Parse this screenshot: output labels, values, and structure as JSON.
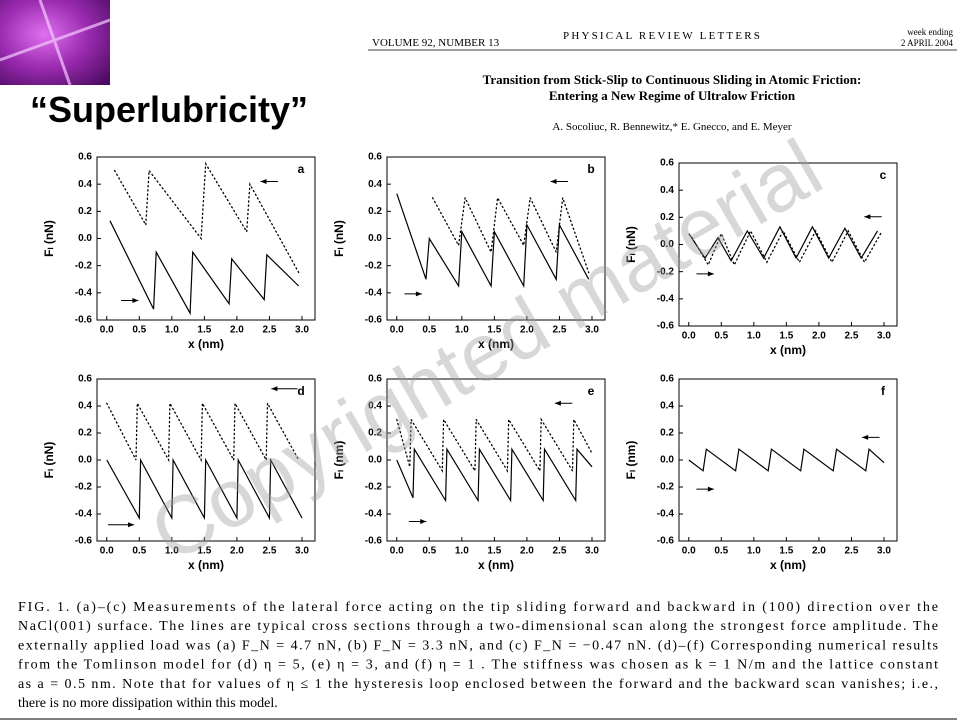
{
  "header": {
    "volume": "VOLUME 92, NUMBER 13",
    "journal": "PHYSICAL REVIEW LETTERS",
    "week": "week ending",
    "date": "2 APRIL 2004"
  },
  "slide_title": "“Superlubricity”",
  "paper": {
    "title": [
      "Transition from Stick-Slip to Continuous Sliding in Atomic Friction:",
      "Entering a New Regime of Ultralow Friction"
    ],
    "authors": "A. Socoliuc, R. Bennewitz,* E. Gnecco, and E. Meyer"
  },
  "chart_data": [
    {
      "type": "line",
      "label": "a",
      "xlabel": "x (nm)",
      "ylabel": "Fₗ (nN)",
      "xlim": [
        -0.15,
        3.2
      ],
      "ylim": [
        -0.6,
        0.6
      ],
      "xticks": [
        {
          "value": 0,
          "label": "0.0"
        },
        0.5,
        {
          "value": 1,
          "label": "1.0"
        },
        1.5,
        {
          "value": 2,
          "label": "2.0"
        },
        2.5,
        {
          "value": 3,
          "label": "3.0"
        }
      ],
      "yticks": [
        -0.6,
        -0.4,
        -0.2,
        {
          "value": 0,
          "label": "0.0"
        },
        0.2,
        0.4,
        0.6
      ],
      "series": [
        {
          "style": "solid",
          "color": "#000000",
          "x": [
            0.05,
            0.72,
            0.76,
            1.28,
            1.32,
            1.88,
            1.92,
            2.42,
            2.46,
            2.95
          ],
          "values": [
            0.13,
            -0.52,
            -0.1,
            -0.55,
            -0.1,
            -0.48,
            -0.15,
            -0.45,
            -0.12,
            -0.35
          ]
        },
        {
          "style": "dotted",
          "color": "#000000",
          "x": [
            0.12,
            0.6,
            0.65,
            1.45,
            1.52,
            2.15,
            2.2,
            2.95
          ],
          "values": [
            0.5,
            0.1,
            0.5,
            0.0,
            0.55,
            0.05,
            0.4,
            -0.25
          ]
        }
      ]
    },
    {
      "type": "line",
      "label": "b",
      "xlabel": "x (nm)",
      "ylabel": "Fₗ (nN)",
      "xlim": [
        -0.15,
        3.2
      ],
      "ylim": [
        -0.6,
        0.6
      ],
      "xticks": [
        {
          "value": 0,
          "label": "0.0"
        },
        0.5,
        {
          "value": 1,
          "label": "1.0"
        },
        1.5,
        {
          "value": 2,
          "label": "2.0"
        },
        2.5,
        {
          "value": 3,
          "label": "3.0"
        }
      ],
      "yticks": [
        -0.6,
        -0.4,
        -0.2,
        {
          "value": 0,
          "label": "0.0"
        },
        0.2,
        0.4,
        0.6
      ],
      "series": [
        {
          "style": "solid",
          "color": "#000000",
          "x": [
            0.0,
            0.45,
            0.5,
            0.95,
            1.0,
            1.45,
            1.5,
            1.95,
            2.0,
            2.45,
            2.5,
            2.95
          ],
          "values": [
            0.33,
            -0.3,
            0.0,
            -0.35,
            0.05,
            -0.35,
            0.05,
            -0.35,
            0.1,
            -0.3,
            0.1,
            -0.3
          ]
        },
        {
          "style": "dotted",
          "color": "#000000",
          "x": [
            0.55,
            0.95,
            1.05,
            1.45,
            1.55,
            1.95,
            2.05,
            2.45,
            2.55,
            2.95
          ],
          "values": [
            0.3,
            -0.05,
            0.3,
            -0.1,
            0.3,
            -0.05,
            0.3,
            -0.1,
            0.3,
            -0.25
          ]
        }
      ]
    },
    {
      "type": "line",
      "label": "c",
      "xlabel": "x (nm)",
      "ylabel": "Fₗ (nN)",
      "xlim": [
        -0.15,
        3.2
      ],
      "ylim": [
        -0.6,
        0.6
      ],
      "xticks": [
        {
          "value": 0,
          "label": "0.0"
        },
        0.5,
        {
          "value": 1,
          "label": "1.0"
        },
        1.5,
        {
          "value": 2,
          "label": "2.0"
        },
        2.5,
        {
          "value": 3,
          "label": "3.0"
        }
      ],
      "yticks": [
        -0.6,
        -0.4,
        -0.2,
        {
          "value": 0,
          "label": "0.0"
        },
        0.2,
        0.4,
        0.6
      ],
      "series": [
        {
          "style": "solid",
          "color": "#000000",
          "x": [
            0.0,
            0.25,
            0.45,
            0.65,
            0.9,
            1.15,
            1.4,
            1.65,
            1.9,
            2.15,
            2.4,
            2.65,
            2.9
          ],
          "values": [
            0.08,
            -0.1,
            0.05,
            -0.12,
            0.1,
            -0.1,
            0.13,
            -0.1,
            0.13,
            -0.1,
            0.12,
            -0.1,
            0.1
          ]
        },
        {
          "style": "dotted",
          "color": "#000000",
          "x": [
            0.05,
            0.3,
            0.5,
            0.7,
            0.95,
            1.2,
            1.45,
            1.7,
            1.95,
            2.2,
            2.45,
            2.7,
            2.95
          ],
          "values": [
            0.05,
            -0.15,
            0.08,
            -0.15,
            0.1,
            -0.13,
            0.1,
            -0.13,
            0.1,
            -0.13,
            0.1,
            -0.13,
            0.08
          ]
        }
      ]
    },
    {
      "type": "line",
      "label": "d",
      "xlabel": "x (nm)",
      "ylabel": "Fₗ (nN)",
      "xlim": [
        -0.15,
        3.2
      ],
      "ylim": [
        -0.6,
        0.6
      ],
      "xticks": [
        {
          "value": 0,
          "label": "0.0"
        },
        0.5,
        {
          "value": 1,
          "label": "1.0"
        },
        1.5,
        {
          "value": 2,
          "label": "2.0"
        },
        2.5,
        {
          "value": 3,
          "label": "3.0"
        }
      ],
      "yticks": [
        -0.6,
        -0.4,
        -0.2,
        {
          "value": 0,
          "label": "0.0"
        },
        0.2,
        0.4,
        0.6
      ],
      "series": [
        {
          "style": "solid",
          "color": "#000000",
          "x": [
            0.0,
            0.5,
            0.52,
            1.0,
            1.02,
            1.5,
            1.52,
            2.0,
            2.02,
            2.5,
            2.52,
            3.0
          ],
          "values": [
            0.0,
            -0.43,
            0.0,
            -0.43,
            0.0,
            -0.43,
            0.0,
            -0.43,
            0.0,
            -0.43,
            0.0,
            -0.43
          ]
        },
        {
          "style": "dotted",
          "color": "#000000",
          "x": [
            0.0,
            0.45,
            0.47,
            0.95,
            0.97,
            1.45,
            1.47,
            1.95,
            1.97,
            2.45,
            2.47,
            2.95
          ],
          "values": [
            0.42,
            0.0,
            0.42,
            0.0,
            0.42,
            0.0,
            0.42,
            0.0,
            0.42,
            0.0,
            0.42,
            0.0
          ]
        }
      ]
    },
    {
      "type": "line",
      "label": "e",
      "xlabel": "x (nm)",
      "ylabel": "Fₗ (nm)",
      "xlim": [
        -0.15,
        3.2
      ],
      "ylim": [
        -0.6,
        0.6
      ],
      "xticks": [
        {
          "value": 0,
          "label": "0.0"
        },
        0.5,
        {
          "value": 1,
          "label": "1.0"
        },
        1.5,
        {
          "value": 2,
          "label": "2.0"
        },
        2.5,
        {
          "value": 3,
          "label": "3.0"
        }
      ],
      "yticks": [
        -0.6,
        -0.4,
        -0.2,
        {
          "value": 0,
          "label": "0.0"
        },
        0.2,
        0.4,
        0.6
      ],
      "series": [
        {
          "style": "solid",
          "color": "#000000",
          "x": [
            0.0,
            0.25,
            0.27,
            0.75,
            0.77,
            1.25,
            1.27,
            1.75,
            1.77,
            2.25,
            2.27,
            2.75,
            2.77,
            3.0
          ],
          "values": [
            0.0,
            -0.28,
            0.08,
            -0.3,
            0.08,
            -0.3,
            0.08,
            -0.3,
            0.08,
            -0.3,
            0.08,
            -0.3,
            0.08,
            -0.05
          ]
        },
        {
          "style": "dotted",
          "color": "#000000",
          "x": [
            0.0,
            0.2,
            0.22,
            0.7,
            0.72,
            1.2,
            1.22,
            1.7,
            1.72,
            2.2,
            2.22,
            2.7,
            2.72,
            3.0
          ],
          "values": [
            0.3,
            -0.05,
            0.3,
            -0.08,
            0.3,
            -0.08,
            0.3,
            -0.08,
            0.3,
            -0.08,
            0.3,
            -0.08,
            0.3,
            0.05
          ]
        }
      ]
    },
    {
      "type": "line",
      "label": "f",
      "xlabel": "x (nm)",
      "ylabel": "Fₗ (nm)",
      "xlim": [
        -0.15,
        3.2
      ],
      "ylim": [
        -0.6,
        0.6
      ],
      "xticks": [
        {
          "value": 0,
          "label": "0.0"
        },
        0.5,
        {
          "value": 1,
          "label": "1.0"
        },
        1.5,
        {
          "value": 2,
          "label": "2.0"
        },
        2.5,
        {
          "value": 3,
          "label": "3.0"
        }
      ],
      "yticks": [
        -0.6,
        -0.4,
        -0.2,
        {
          "value": 0,
          "label": "0.0"
        },
        0.2,
        0.4,
        0.6
      ],
      "series": [
        {
          "style": "solid",
          "color": "#000000",
          "x": [
            0.0,
            0.22,
            0.27,
            0.72,
            0.77,
            1.22,
            1.27,
            1.72,
            1.77,
            2.22,
            2.27,
            2.72,
            2.77,
            3.0
          ],
          "values": [
            0.0,
            -0.08,
            0.08,
            -0.08,
            0.08,
            -0.08,
            0.08,
            -0.08,
            0.08,
            -0.08,
            0.08,
            -0.08,
            0.08,
            -0.02
          ]
        }
      ]
    }
  ],
  "caption": [
    "FIG. 1.   (a)–(c) Measurements of the lateral force acting on the tip sliding forward and backward in (100) direction over the",
    "NaCl(001) surface. The lines are typical cross sections through a two-dimensional scan along the strongest force amplitude. The",
    "externally applied load was (a) F_N = 4.7 nN, (b) F_N = 3.3 nN, and (c) F_N = −0.47 nN. (d)–(f) Corresponding numerical results",
    "from the Tomlinson model for (d) η = 5, (e) η = 3, and (f) η = 1 . The stiffness was chosen as k = 1 N/m and the lattice constant",
    "as a = 0.5 nm. Note that for values of η ≤ 1 the hysteresis loop enclosed between the forward and the backward scan vanishes; i.e.,",
    "there is no more dissipation within this model."
  ],
  "watermark": "Copyrighted material"
}
